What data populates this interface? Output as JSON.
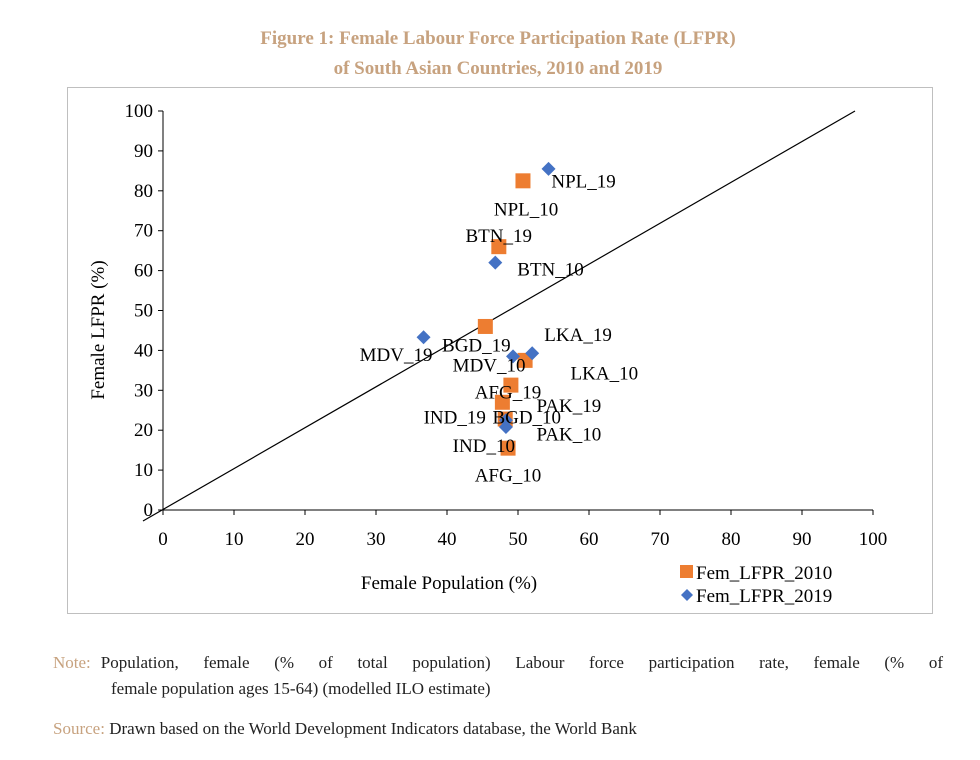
{
  "figure": {
    "title_line1": "Figure 1: Female Labour Force Participation Rate (LFPR)",
    "title_line2": "of South Asian Countries, 2010 and 2019"
  },
  "colors": {
    "series_2010": "#ed7d31",
    "series_2019": "#4472c4",
    "title": "#c7a27f",
    "note_label": "#c7a27f"
  },
  "chart_data": {
    "type": "scatter",
    "xlabel": "Female Population (%)",
    "ylabel": "Female LFPR (%)",
    "xlim": [
      0,
      100
    ],
    "ylim": [
      0,
      100
    ],
    "x_ticks": [
      "0",
      "10",
      "20",
      "30",
      "40",
      "50",
      "60",
      "70",
      "80",
      "90",
      "100"
    ],
    "y_ticks": [
      "0",
      "10",
      "20",
      "30",
      "40",
      "50",
      "60",
      "70",
      "80",
      "90",
      "100"
    ],
    "reference_line": {
      "x": [
        0,
        100
      ],
      "y": [
        0,
        100
      ]
    },
    "legend_position": "bottom-right",
    "grid": false,
    "series": [
      {
        "name": "Fem_LFPR_2010",
        "marker": "square",
        "points": [
          {
            "x": 50.7,
            "y": 82.5
          },
          {
            "x": 47.3,
            "y": 66
          },
          {
            "x": 45.4,
            "y": 46
          },
          {
            "x": 51.0,
            "y": 37.5
          },
          {
            "x": 49.0,
            "y": 31.3
          },
          {
            "x": 47.8,
            "y": 27
          },
          {
            "x": 48.2,
            "y": 22.8
          },
          {
            "x": 48.6,
            "y": 15.5
          }
        ]
      },
      {
        "name": "Fem_LFPR_2019",
        "marker": "diamond",
        "points": [
          {
            "x": 54.3,
            "y": 85.5
          },
          {
            "x": 46.8,
            "y": 62
          },
          {
            "x": 36.7,
            "y": 43.3
          },
          {
            "x": 52.0,
            "y": 39.3
          },
          {
            "x": 49.3,
            "y": 38.5
          },
          {
            "x": 48.3,
            "y": 22.5
          },
          {
            "x": 48.3,
            "y": 20.8
          }
        ]
      }
    ],
    "annotations": [
      {
        "text": "NPL_19",
        "x": 54.7,
        "y": 80.8
      },
      {
        "text": "NPL_10",
        "x": 46.6,
        "y": 73.8
      },
      {
        "text": "BTN_19",
        "x": 42.6,
        "y": 67.2
      },
      {
        "text": "BTN_10",
        "x": 49.9,
        "y": 58.8
      },
      {
        "text": "LKA_19",
        "x": 53.7,
        "y": 42.4
      },
      {
        "text": "BGD_19",
        "x": 39.3,
        "y": 39.7
      },
      {
        "text": "MDV_19",
        "x": 27.7,
        "y": 37.4
      },
      {
        "text": "MDV_10",
        "x": 40.8,
        "y": 34.7
      },
      {
        "text": "LKA_10",
        "x": 57.4,
        "y": 32.7
      },
      {
        "text": "AFG_19",
        "x": 43.9,
        "y": 27.9
      },
      {
        "text": "PAK_19",
        "x": 52.6,
        "y": 24.5
      },
      {
        "text": "IND_19",
        "x": 36.7,
        "y": 21.7
      },
      {
        "text": "BGD_10",
        "x": 46.4,
        "y": 21.7
      },
      {
        "text": "PAK_10",
        "x": 52.6,
        "y": 17.4
      },
      {
        "text": "IND_10",
        "x": 40.8,
        "y": 14.5
      },
      {
        "text": "AFG_10",
        "x": 43.9,
        "y": 7.1
      }
    ]
  },
  "note": {
    "label": "Note:",
    "text_line1": "Population, female (% of total population) Labour force participation rate, female (% of",
    "text_line2": "female population ages 15-64) (modelled ILO estimate)"
  },
  "source": {
    "label": "Source:",
    "text": "Drawn based on the World Development Indicators database, the World Bank"
  }
}
